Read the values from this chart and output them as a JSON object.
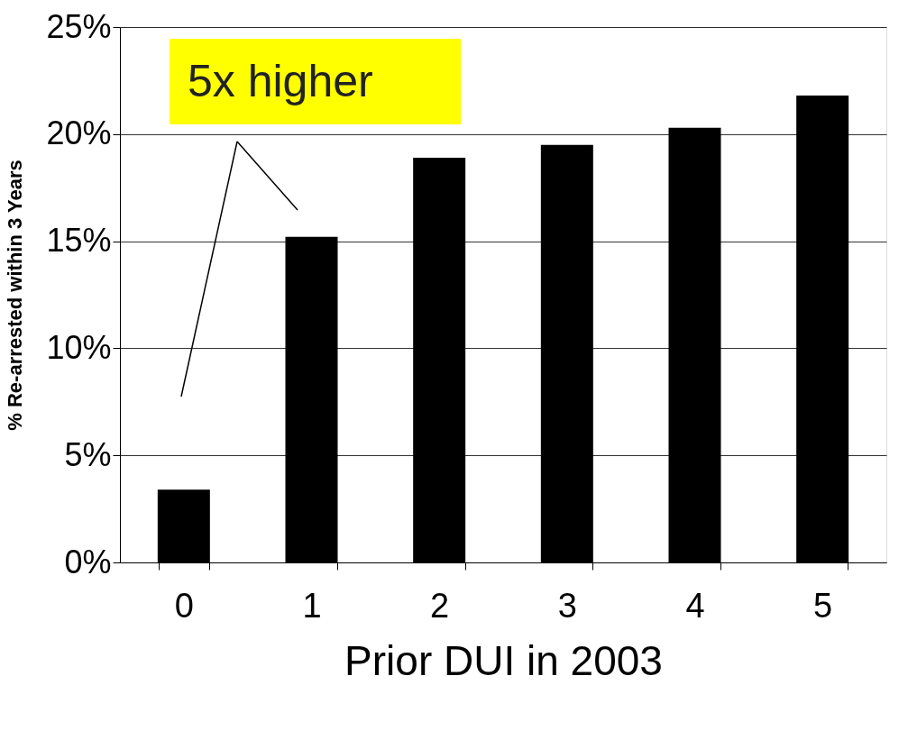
{
  "chart_data": {
    "type": "bar",
    "categories": [
      "0",
      "1",
      "2",
      "3",
      "4",
      "5"
    ],
    "values": [
      3.4,
      15.2,
      18.9,
      19.5,
      20.3,
      21.8
    ],
    "color": "#000000",
    "xlabel": "Prior DUI in 2003",
    "ylabel": "% Re-arrested within 3 Years",
    "ylim": [
      0,
      25
    ],
    "yticks": [
      {
        "value": 0,
        "label": "0%"
      },
      {
        "value": 5,
        "label": "5%"
      },
      {
        "value": 10,
        "label": "10%"
      },
      {
        "value": 15,
        "label": "15%"
      },
      {
        "value": 20,
        "label": "20%"
      },
      {
        "value": 25,
        "label": "25%"
      }
    ],
    "grid": "y",
    "annotations": [
      "5x higher"
    ]
  }
}
